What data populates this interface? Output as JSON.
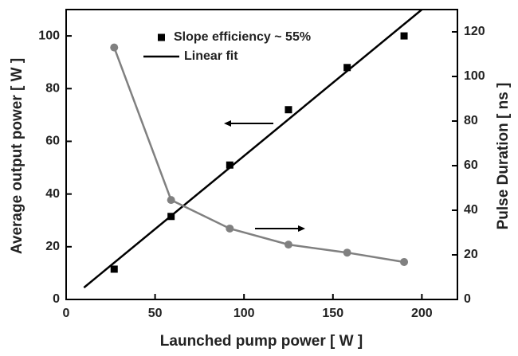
{
  "chart_data": {
    "type": "line",
    "xlabel": "Launched pump power [ W ]",
    "ylabel": "Average output power [ W ]",
    "y2label": "Pulse Duration [ ns ]",
    "xlim": [
      0,
      220
    ],
    "xticks": [
      0,
      50,
      100,
      150,
      200
    ],
    "ylim": [
      0,
      110
    ],
    "yticks": [
      0,
      20,
      40,
      60,
      80,
      100
    ],
    "y2lim": [
      0,
      130
    ],
    "y2ticks": [
      0,
      20,
      40,
      60,
      80,
      100,
      120
    ],
    "series": [
      {
        "name": "Slope efficiency ~ 55%",
        "color": "#000000",
        "marker": "square",
        "line": false,
        "x": [
          27,
          59,
          92,
          125,
          158,
          190
        ],
        "values": [
          11.5,
          31.5,
          51,
          72,
          88,
          100
        ]
      },
      {
        "name": "Linear fit",
        "color": "#000000",
        "marker": null,
        "line": true,
        "x": [
          10,
          200
        ],
        "values": [
          4.5,
          110
        ]
      },
      {
        "color": "#808080",
        "marker": "circle",
        "line": true,
        "axis": "y2",
        "x": [
          27,
          59,
          92,
          125,
          158,
          190
        ],
        "values": [
          113,
          44.6,
          31.8,
          24.6,
          21,
          16.8
        ]
      }
    ]
  }
}
